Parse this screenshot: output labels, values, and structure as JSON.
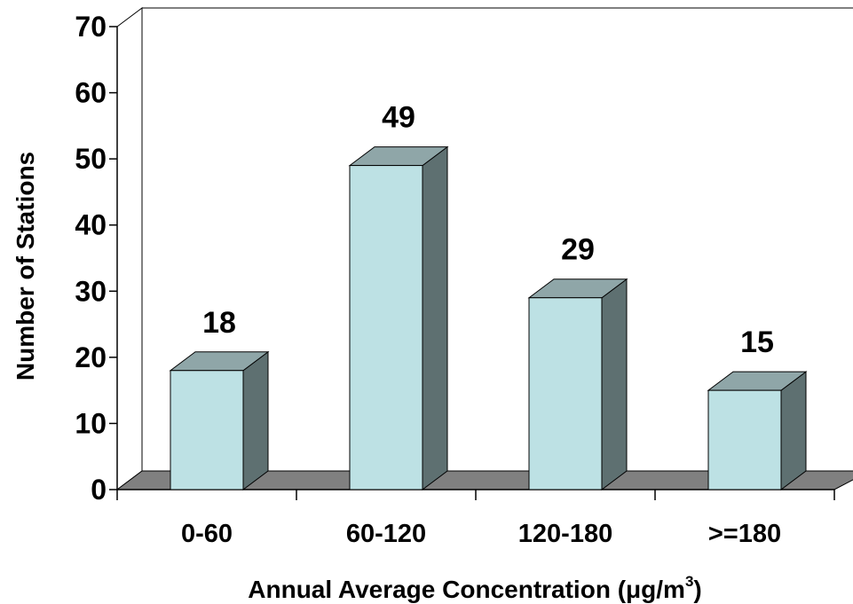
{
  "chart_data": {
    "type": "bar",
    "style": "3d-column",
    "categories": [
      "0-60",
      "60-120",
      "120-180",
      ">=180"
    ],
    "values": [
      18,
      49,
      29,
      15
    ],
    "data_labels": [
      "18",
      "49",
      "29",
      "15"
    ],
    "xlabel": "Annual Average Concentration (μg/m",
    "xlabel_superscript": "3",
    "xlabel_suffix": ")",
    "ylabel": "Number of Stations",
    "ylim": [
      0,
      70
    ],
    "yticks": [
      0,
      10,
      20,
      30,
      40,
      50,
      60,
      70
    ],
    "ytick_labels": [
      "0",
      "10",
      "20",
      "30",
      "40",
      "50",
      "60",
      "70"
    ],
    "grid": false,
    "legend": "none",
    "colors": {
      "bar_front": "#BDE1E4",
      "bar_top": "#8FA6A8",
      "bar_side": "#5E7071",
      "floor": "#808080",
      "wall": "#FFFFFF",
      "text": "#000000"
    }
  }
}
